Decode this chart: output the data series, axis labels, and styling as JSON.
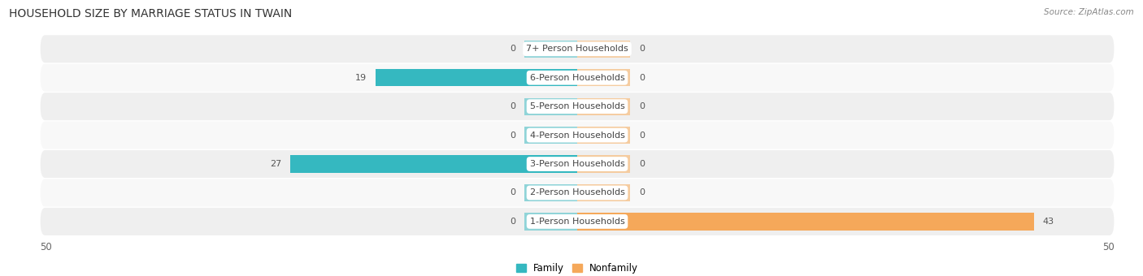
{
  "title": "HOUSEHOLD SIZE BY MARRIAGE STATUS IN TWAIN",
  "source": "Source: ZipAtlas.com",
  "categories": [
    "7+ Person Households",
    "6-Person Households",
    "5-Person Households",
    "4-Person Households",
    "3-Person Households",
    "2-Person Households",
    "1-Person Households"
  ],
  "family_values": [
    0,
    19,
    0,
    0,
    27,
    0,
    0
  ],
  "nonfamily_values": [
    0,
    0,
    0,
    0,
    0,
    0,
    43
  ],
  "family_color": "#35B8C0",
  "family_color_light": "#90D4D8",
  "nonfamily_color": "#F5A85A",
  "nonfamily_color_light": "#F5CCA0",
  "row_bg_even": "#EFEFEF",
  "row_bg_odd": "#F8F8F8",
  "xlim": 50,
  "stub_size": 5,
  "legend_labels": [
    "Family",
    "Nonfamily"
  ],
  "title_fontsize": 10,
  "source_fontsize": 7.5,
  "label_fontsize": 8,
  "value_fontsize": 8,
  "tick_fontsize": 8.5
}
